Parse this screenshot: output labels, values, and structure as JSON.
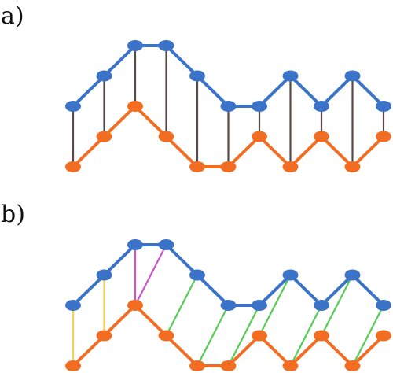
{
  "panels": [
    {
      "label": "a)",
      "top_curve": [
        [
          0,
          2
        ],
        [
          1,
          3
        ],
        [
          2,
          4
        ],
        [
          3,
          4
        ],
        [
          4,
          3
        ],
        [
          5,
          2
        ],
        [
          6,
          2
        ],
        [
          7,
          3
        ],
        [
          8,
          2
        ],
        [
          9,
          3
        ],
        [
          10,
          2
        ]
      ],
      "bottom_curve": [
        [
          0,
          0
        ],
        [
          1,
          1
        ],
        [
          2,
          2
        ],
        [
          3,
          1
        ],
        [
          4,
          0
        ],
        [
          5,
          0
        ],
        [
          6,
          1
        ],
        [
          7,
          0
        ],
        [
          8,
          1
        ],
        [
          9,
          0
        ],
        [
          10,
          1
        ]
      ],
      "links": [
        {
          "top": 0,
          "bottom": 0,
          "color": "#5a4a46"
        },
        {
          "top": 1,
          "bottom": 1,
          "color": "#5a4a46"
        },
        {
          "top": 2,
          "bottom": 2,
          "color": "#5a4a46"
        },
        {
          "top": 3,
          "bottom": 3,
          "color": "#5a4a46"
        },
        {
          "top": 4,
          "bottom": 4,
          "color": "#5a4a46"
        },
        {
          "top": 5,
          "bottom": 5,
          "color": "#5a4a46"
        },
        {
          "top": 6,
          "bottom": 6,
          "color": "#5a4a46"
        },
        {
          "top": 7,
          "bottom": 7,
          "color": "#5a4a46"
        },
        {
          "top": 8,
          "bottom": 8,
          "color": "#5a4a46"
        },
        {
          "top": 9,
          "bottom": 9,
          "color": "#5a4a46"
        },
        {
          "top": 10,
          "bottom": 10,
          "color": "#5a4a46"
        }
      ]
    },
    {
      "label": "b)",
      "top_curve": [
        [
          0,
          2
        ],
        [
          1,
          3
        ],
        [
          2,
          4
        ],
        [
          3,
          4
        ],
        [
          4,
          3
        ],
        [
          5,
          2
        ],
        [
          6,
          2
        ],
        [
          7,
          3
        ],
        [
          8,
          2
        ],
        [
          9,
          3
        ],
        [
          10,
          2
        ]
      ],
      "bottom_curve": [
        [
          0,
          0
        ],
        [
          1,
          1
        ],
        [
          2,
          2
        ],
        [
          3,
          1
        ],
        [
          4,
          0
        ],
        [
          5,
          0
        ],
        [
          6,
          1
        ],
        [
          7,
          0
        ],
        [
          8,
          1
        ],
        [
          9,
          0
        ],
        [
          10,
          1
        ]
      ],
      "links": [
        {
          "top": 0,
          "bottom": 0,
          "color": "#f6d24a"
        },
        {
          "top": 1,
          "bottom": 1,
          "color": "#f6d24a"
        },
        {
          "top": 2,
          "bottom": 2,
          "color": "#cc55cc"
        },
        {
          "top": 3,
          "bottom": 2,
          "color": "#cc55cc"
        },
        {
          "top": 4,
          "bottom": 3,
          "color": "#55cc55"
        },
        {
          "top": 5,
          "bottom": 4,
          "color": "#55cc55"
        },
        {
          "top": 6,
          "bottom": 5,
          "color": "#55cc55"
        },
        {
          "top": 7,
          "bottom": 6,
          "color": "#55cc55"
        },
        {
          "top": 8,
          "bottom": 7,
          "color": "#55cc55"
        },
        {
          "top": 9,
          "bottom": 8,
          "color": "#55cc55"
        },
        {
          "top": 10,
          "bottom": 9,
          "color": "#55cc55"
        }
      ]
    }
  ],
  "colors": {
    "top_curve": "#3a73c8",
    "bottom_curve": "#f26d21"
  }
}
